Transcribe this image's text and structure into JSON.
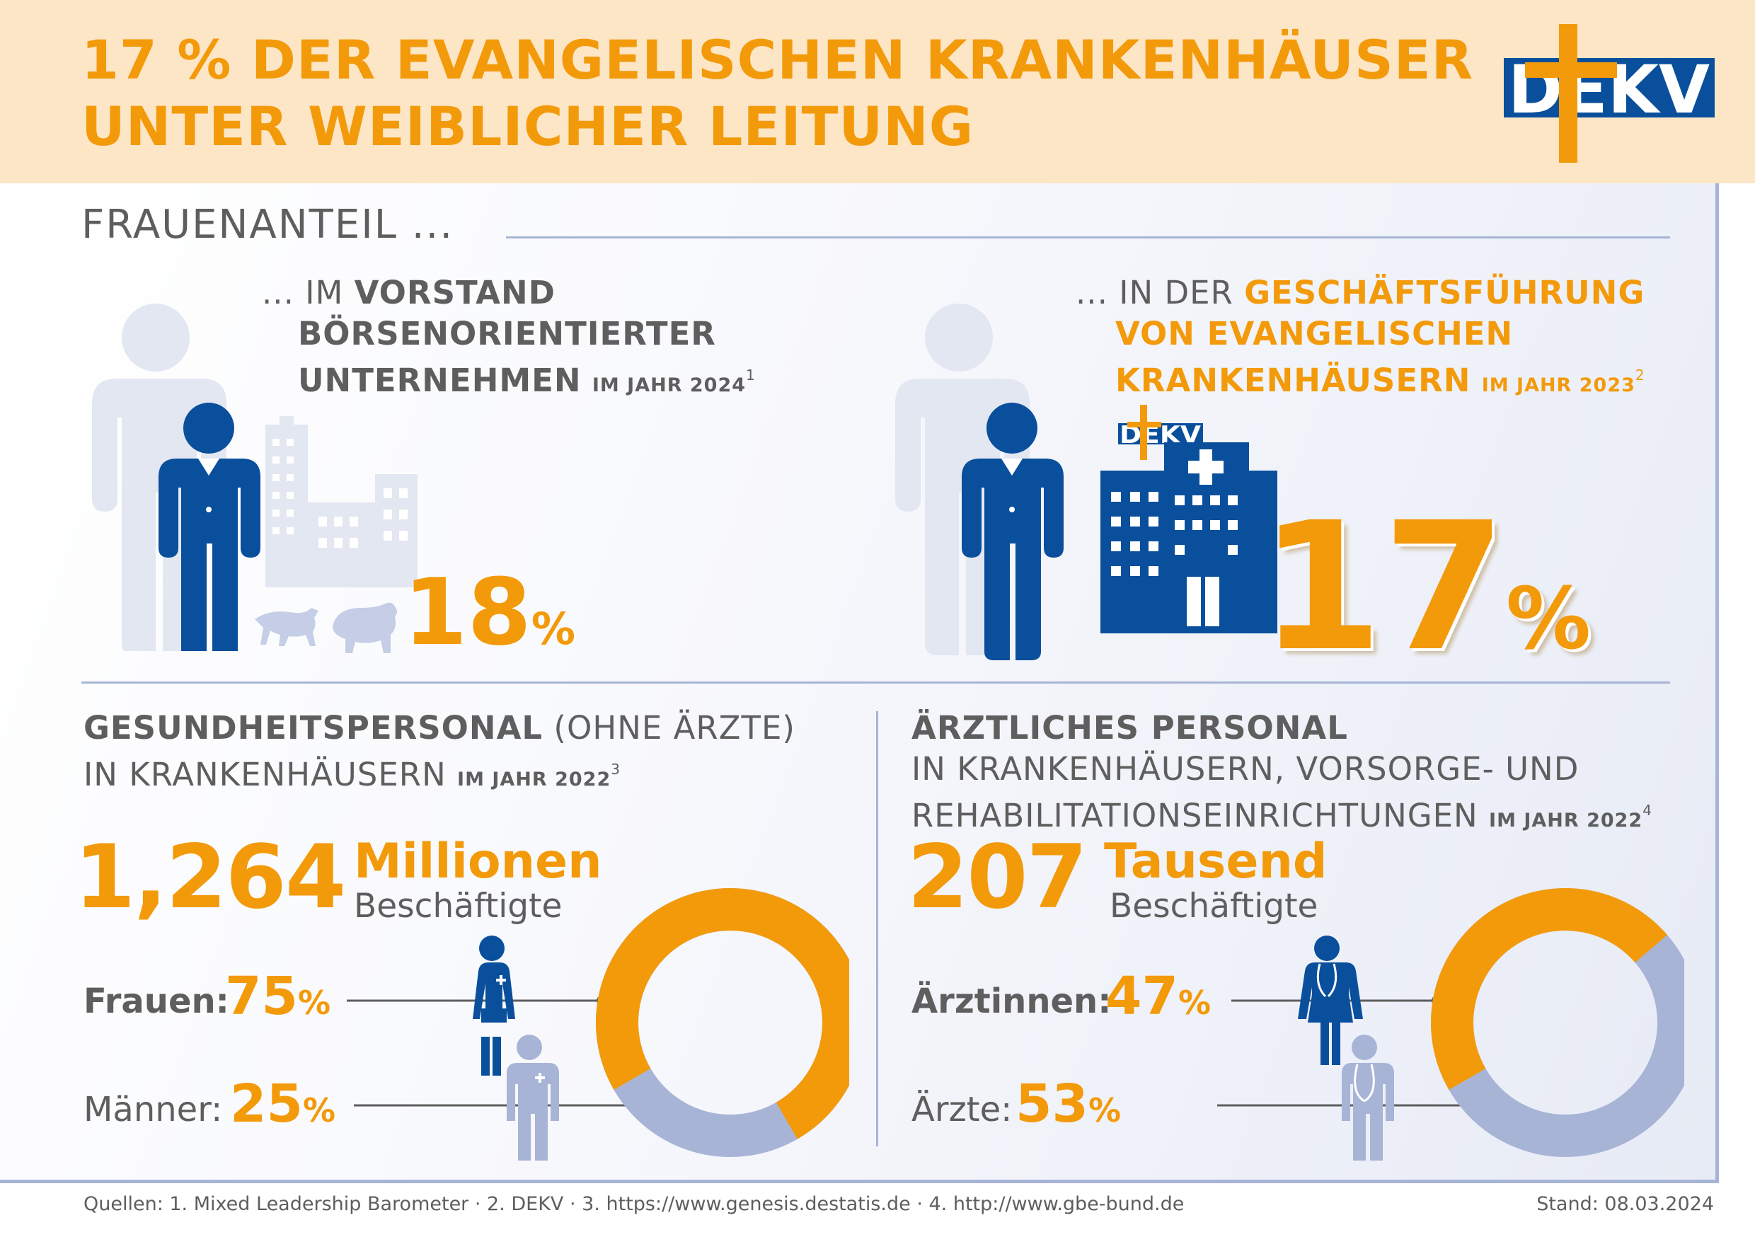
{
  "header": {
    "title_line1": "17 % DER EVANGELISCHEN KRANKENHÄUSER",
    "title_line2": "UNTER WEIBLICHER LEITUNG"
  },
  "logo": {
    "text": "DEKV",
    "icon": "dekv-cross-logo"
  },
  "section_label": "FRAUENANTEIL ...",
  "vorstand": {
    "line1_prefix": "... IM ",
    "line1_bold": "VORSTAND",
    "line2": "BÖRSENORIENTIERTER",
    "line3": "UNTERNEHMEN",
    "year": "IM JAHR 2024",
    "footnote": "1",
    "value": "18",
    "unit": "%",
    "icons": [
      "businessman-icon",
      "skyscraper-icon",
      "bull-icon",
      "bear-icon"
    ]
  },
  "geschaeftsfuehrung": {
    "line1_prefix": "... IN DER ",
    "line1_bold": "GESCHÄFTSFÜHRUNG",
    "line2": "VON EVANGELISCHEN",
    "line3": "KRANKENHÄUSERN",
    "year": "IM JAHR 2023",
    "footnote": "2",
    "value": "17",
    "unit": "%",
    "icons": [
      "businessman-icon",
      "hospital-icon",
      "dekv-logo-small"
    ]
  },
  "gesundheitspersonal": {
    "title_bold": "GESUNDHEITSPERSONAL",
    "title_rest": " (OHNE ÄRZTE)",
    "line2": "IN KRANKENHÄUSERN",
    "year": "IM JAHR 2022",
    "footnote": "3",
    "big_number": "1,264",
    "unit_word": "Millionen",
    "unit_sub": "Beschäftigte",
    "women_label": "Frauen:",
    "women_value": "75",
    "women_unit": "%",
    "men_label": "Männer:",
    "men_value": "25",
    "men_unit": "%",
    "women_share": 0.75,
    "men_share": 0.25
  },
  "aerztliches_personal": {
    "title_bold": "ÄRZTLICHES PERSONAL",
    "line2": "IN KRANKENHÄUSERN, VORSORGE- UND",
    "line3": "REHABILITATIONSEINRICHTUNGEN",
    "year": "IM JAHR 2022",
    "footnote": "4",
    "big_number": "207",
    "unit_word": "Tausend",
    "unit_sub": "Beschäftigte",
    "women_label": "Ärztinnen:",
    "women_value": "47",
    "women_unit": "%",
    "men_label": "Ärzte:",
    "men_value": "53",
    "men_unit": "%",
    "women_share": 0.47,
    "men_share": 0.53
  },
  "footer": {
    "sources": "Quellen: 1. Mixed Leadership Barometer · 2. DEKV · 3. https://www.genesis.destatis.de · 4. http://www.gbe-bund.de",
    "date": "Stand: 08.03.2024"
  },
  "colors": {
    "orange": "#f39a0b",
    "dark_blue": "#0a4f9c",
    "light_blue": "#a7b4d6",
    "pale_figure": "#e3e7f1",
    "text_gray": "#5e5e5e",
    "header_bg": "#fde6c6"
  }
}
